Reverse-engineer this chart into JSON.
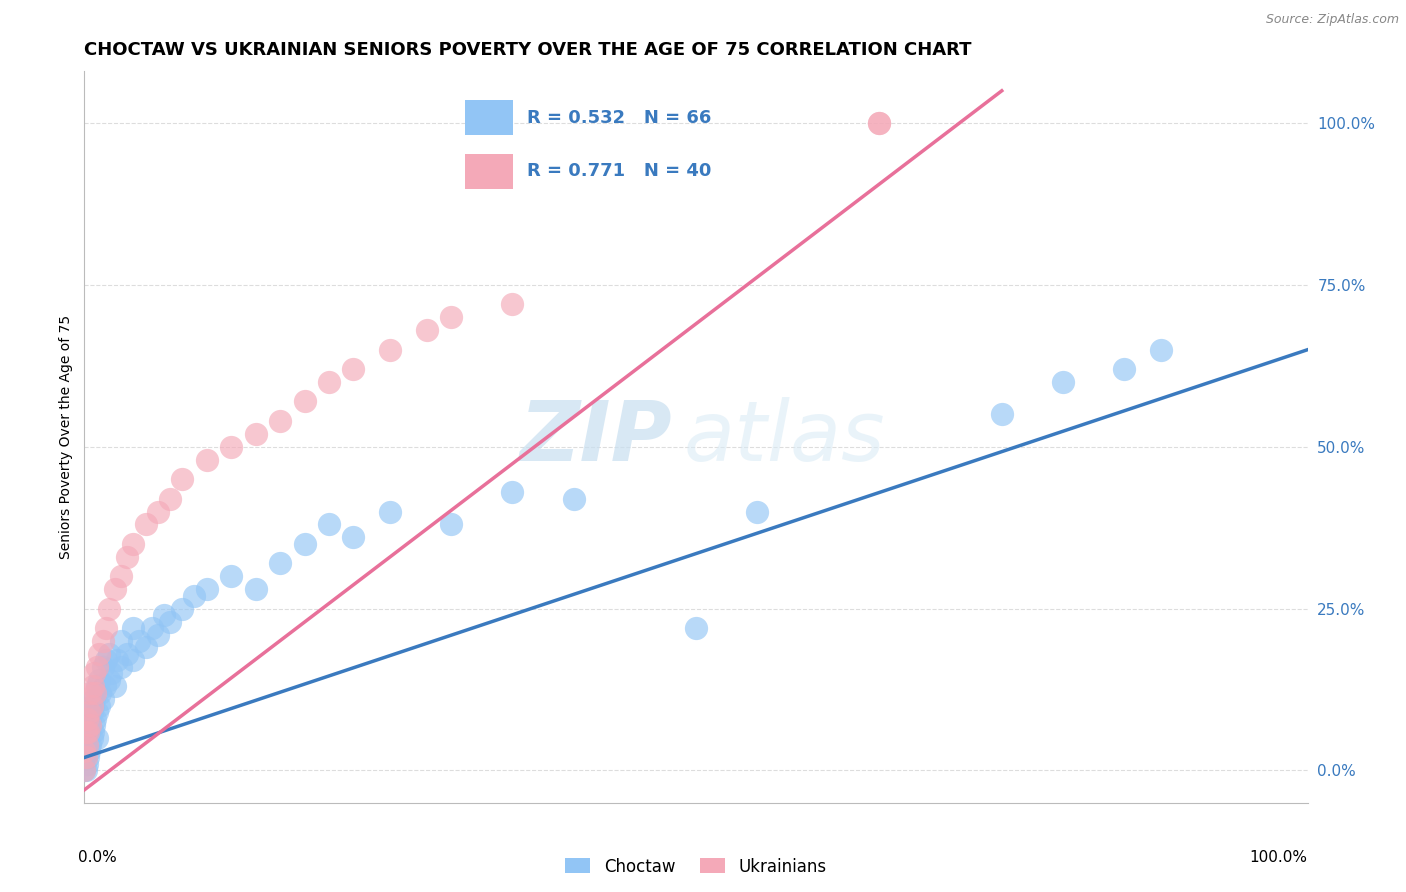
{
  "title": "CHOCTAW VS UKRAINIAN SENIORS POVERTY OVER THE AGE OF 75 CORRELATION CHART",
  "source": "Source: ZipAtlas.com",
  "ylabel": "Seniors Poverty Over the Age of 75",
  "xlim": [
    0,
    1
  ],
  "ylim": [
    -0.05,
    1.08
  ],
  "yticks": [
    0.0,
    0.25,
    0.5,
    0.75,
    1.0
  ],
  "ytick_labels": [
    "0.0%",
    "25.0%",
    "50.0%",
    "75.0%",
    "100.0%"
  ],
  "choctaw_color": "#92c5f5",
  "ukrainian_color": "#f4a9b8",
  "choctaw_line_color": "#3a7abf",
  "ukrainian_line_color": "#e8709a",
  "legend_R_choctaw": "R = 0.532",
  "legend_N_choctaw": "N = 66",
  "legend_R_ukrainian": "R = 0.771",
  "legend_N_ukrainian": "N = 40",
  "watermark_zip": "ZIP",
  "watermark_atlas": "atlas",
  "grid_color": "#dddddd",
  "background_color": "#ffffff",
  "title_fontsize": 13,
  "axis_label_fontsize": 10,
  "tick_fontsize": 11,
  "legend_fontsize": 14,
  "choctaw_line_x0": 0.0,
  "choctaw_line_y0": 0.02,
  "choctaw_line_x1": 1.0,
  "choctaw_line_y1": 0.65,
  "ukrainian_line_x0": 0.0,
  "ukrainian_line_y0": -0.03,
  "ukrainian_line_x1": 0.75,
  "ukrainian_line_y1": 1.05,
  "choctaw_x": [
    0.0,
    0.0,
    0.0,
    0.001,
    0.001,
    0.002,
    0.002,
    0.003,
    0.003,
    0.003,
    0.004,
    0.004,
    0.005,
    0.005,
    0.006,
    0.006,
    0.007,
    0.007,
    0.008,
    0.008,
    0.009,
    0.01,
    0.01,
    0.01,
    0.012,
    0.012,
    0.013,
    0.015,
    0.015,
    0.017,
    0.018,
    0.02,
    0.02,
    0.022,
    0.025,
    0.027,
    0.03,
    0.03,
    0.035,
    0.04,
    0.04,
    0.045,
    0.05,
    0.055,
    0.06,
    0.065,
    0.07,
    0.08,
    0.09,
    0.1,
    0.12,
    0.14,
    0.16,
    0.18,
    0.2,
    0.22,
    0.25,
    0.3,
    0.35,
    0.4,
    0.5,
    0.55,
    0.75,
    0.8,
    0.85,
    0.88
  ],
  "choctaw_y": [
    0.0,
    0.02,
    0.04,
    0.0,
    0.03,
    0.01,
    0.04,
    0.02,
    0.05,
    0.07,
    0.03,
    0.06,
    0.04,
    0.08,
    0.05,
    0.09,
    0.06,
    0.1,
    0.07,
    0.11,
    0.08,
    0.05,
    0.09,
    0.13,
    0.1,
    0.14,
    0.12,
    0.11,
    0.16,
    0.13,
    0.17,
    0.14,
    0.18,
    0.15,
    0.13,
    0.17,
    0.16,
    0.2,
    0.18,
    0.22,
    0.17,
    0.2,
    0.19,
    0.22,
    0.21,
    0.24,
    0.23,
    0.25,
    0.27,
    0.28,
    0.3,
    0.28,
    0.32,
    0.35,
    0.38,
    0.36,
    0.4,
    0.38,
    0.43,
    0.42,
    0.22,
    0.4,
    0.55,
    0.6,
    0.62,
    0.65
  ],
  "ukrainian_x": [
    0.0,
    0.0,
    0.001,
    0.001,
    0.002,
    0.002,
    0.003,
    0.004,
    0.005,
    0.005,
    0.006,
    0.007,
    0.008,
    0.009,
    0.01,
    0.012,
    0.015,
    0.018,
    0.02,
    0.025,
    0.03,
    0.035,
    0.04,
    0.05,
    0.06,
    0.07,
    0.08,
    0.1,
    0.12,
    0.14,
    0.16,
    0.18,
    0.2,
    0.22,
    0.25,
    0.28,
    0.3,
    0.35,
    0.65,
    0.65
  ],
  "ukrainian_y": [
    0.0,
    0.03,
    0.02,
    0.06,
    0.04,
    0.08,
    0.06,
    0.09,
    0.07,
    0.12,
    0.1,
    0.13,
    0.15,
    0.12,
    0.16,
    0.18,
    0.2,
    0.22,
    0.25,
    0.28,
    0.3,
    0.33,
    0.35,
    0.38,
    0.4,
    0.42,
    0.45,
    0.48,
    0.5,
    0.52,
    0.54,
    0.57,
    0.6,
    0.62,
    0.65,
    0.68,
    0.7,
    0.72,
    1.0,
    1.0
  ]
}
